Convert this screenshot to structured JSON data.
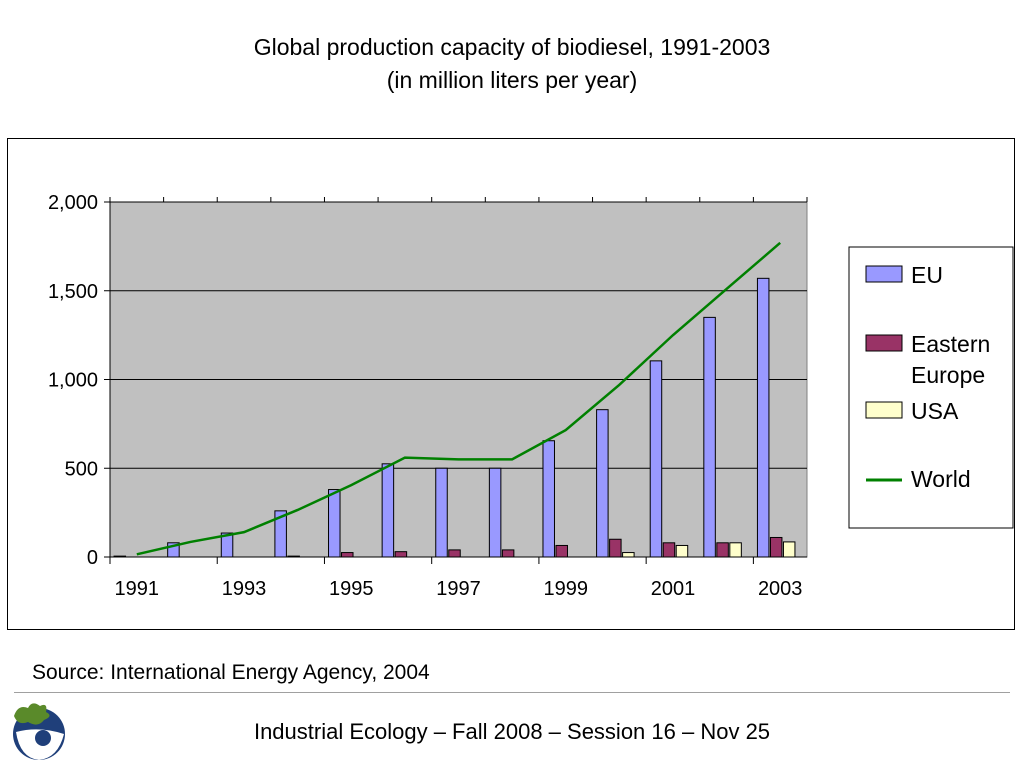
{
  "chart_data": {
    "type": "bar",
    "title": "Global production capacity of biodiesel, 1991-2003",
    "subtitle": "(in million liters per year)",
    "categories": [
      "1991",
      "1992",
      "1993",
      "1994",
      "1995",
      "1996",
      "1997",
      "1998",
      "1999",
      "2000",
      "2001",
      "2002",
      "2003"
    ],
    "x_tick_labels": [
      "1991",
      "1993",
      "1995",
      "1997",
      "1999",
      "2001",
      "2003"
    ],
    "y_tick_labels": [
      "0",
      "500",
      "1,000",
      "1,500",
      "2,000"
    ],
    "y_ticks": [
      0,
      500,
      1000,
      1500,
      2000
    ],
    "ylim": [
      0,
      2000
    ],
    "grid": true,
    "legend_position": "right",
    "series": [
      {
        "name": "EU",
        "type": "bar",
        "color": "#9999ff",
        "values": [
          5,
          80,
          135,
          260,
          380,
          525,
          500,
          500,
          655,
          830,
          1105,
          1350,
          1570
        ]
      },
      {
        "name": "Eastern Europe",
        "type": "bar",
        "color": "#993366",
        "values": [
          0,
          0,
          0,
          5,
          25,
          30,
          40,
          40,
          65,
          100,
          80,
          80,
          110
        ]
      },
      {
        "name": "USA",
        "type": "bar",
        "color": "#ffffcc",
        "values": [
          0,
          0,
          0,
          0,
          0,
          0,
          0,
          0,
          0,
          25,
          65,
          80,
          85
        ]
      },
      {
        "name": "World",
        "type": "line",
        "color": "#008000",
        "values": [
          15,
          85,
          140,
          265,
          405,
          560,
          550,
          550,
          715,
          970,
          1250,
          1510,
          1770
        ]
      }
    ]
  },
  "slide": {
    "title_line1": "Global production capacity of biodiesel, 1991-2003",
    "title_line2": "(in million liters per year)",
    "source": "Source: International Energy Agency, 2004",
    "footer": "Industrial Ecology – Fall 2008 – Session 16 – Nov 25"
  },
  "legend": {
    "eu": "EU",
    "ee_line1": "Eastern",
    "ee_line2": "Europe",
    "usa": "USA",
    "world": "World"
  },
  "colors": {
    "plot_bg": "#c0c0c0",
    "eu": "#9999ff",
    "eastern_europe": "#993366",
    "usa": "#ffffcc",
    "world": "#008000"
  }
}
